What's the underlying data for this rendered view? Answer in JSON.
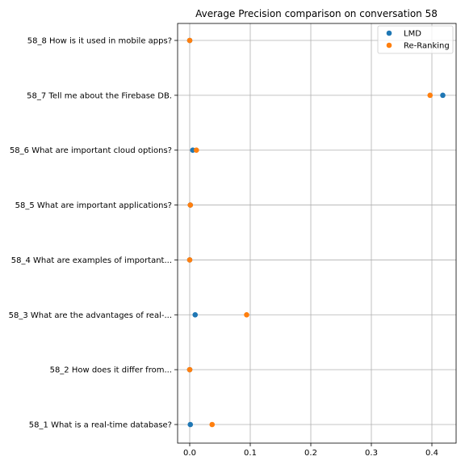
{
  "chart_data": {
    "type": "scatter",
    "title": "Average Precision comparison on conversation 58",
    "xlabel": "",
    "ylabel": "",
    "xlim": [
      -0.02,
      0.44
    ],
    "x_ticks": [
      0.0,
      0.1,
      0.2,
      0.3,
      0.4
    ],
    "x_tick_labels": [
      "0.0",
      "0.1",
      "0.2",
      "0.3",
      "0.4"
    ],
    "categories": [
      "58_1 What is a real-time database?",
      "58_2 How does it differ from...",
      "58_3 What are the advantages of real-...",
      "58_4 What are examples of important...",
      "58_5 What are important applications?",
      "58_6 What are important cloud options?",
      "58_7 Tell me about the Firebase DB.",
      "58_8 How is it used in mobile apps?"
    ],
    "grid": true,
    "legend_position": "top-right",
    "series": [
      {
        "name": "LMD",
        "color": "#1f77b4",
        "values": [
          0.001,
          0.0,
          0.009,
          0.0,
          0.001,
          0.005,
          0.418,
          0.0
        ]
      },
      {
        "name": "Re-Ranking",
        "color": "#ff7f0e",
        "values": [
          0.037,
          0.0,
          0.094,
          0.0,
          0.001,
          0.011,
          0.397,
          0.0
        ]
      }
    ]
  }
}
